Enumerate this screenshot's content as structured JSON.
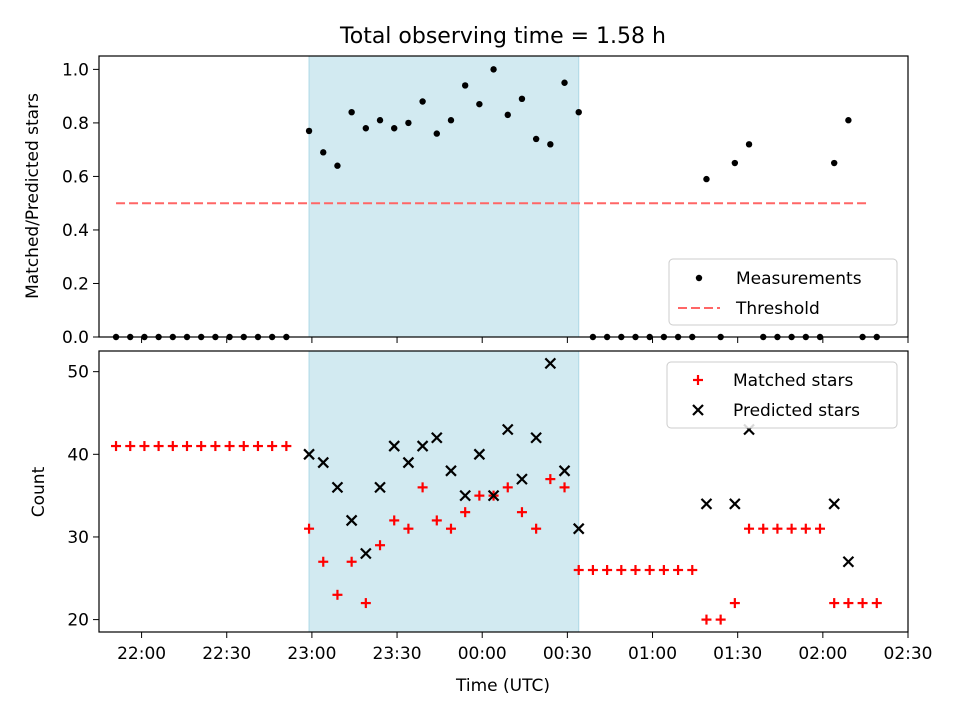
{
  "figure": {
    "title": "Total observing time = 1.58 h"
  },
  "colors": {
    "shade": "#add8e6",
    "threshold": "#ff6666",
    "matched": "#ff0000",
    "predicted": "#000000",
    "measure": "#000000"
  },
  "chart_data": [
    {
      "type": "scatter",
      "ylabel": "Matched/Predicted stars",
      "ylim": [
        0,
        1.05
      ],
      "yticks": [
        0.0,
        0.2,
        0.4,
        0.6,
        0.8,
        1.0
      ],
      "shaded_span": {
        "from": "22:59",
        "to": "00:34"
      },
      "threshold": {
        "name": "Threshold",
        "value": 0.5,
        "from": "21:51",
        "to": "02:16"
      },
      "legend": {
        "position": "lower-right",
        "entries": [
          "Measurements",
          "Threshold"
        ]
      },
      "series": [
        {
          "name": "Measurements",
          "marker": "dot",
          "points": [
            [
              "21:51",
              0
            ],
            [
              "21:56",
              0
            ],
            [
              "22:01",
              0
            ],
            [
              "22:06",
              0
            ],
            [
              "22:11",
              0
            ],
            [
              "22:16",
              0
            ],
            [
              "22:21",
              0
            ],
            [
              "22:26",
              0
            ],
            [
              "22:31",
              0
            ],
            [
              "22:36",
              0
            ],
            [
              "22:41",
              0
            ],
            [
              "22:46",
              0
            ],
            [
              "22:51",
              0
            ],
            [
              "22:59",
              0.77
            ],
            [
              "23:04",
              0.69
            ],
            [
              "23:09",
              0.64
            ],
            [
              "23:14",
              0.84
            ],
            [
              "23:19",
              0.78
            ],
            [
              "23:24",
              0.81
            ],
            [
              "23:29",
              0.78
            ],
            [
              "23:34",
              0.8
            ],
            [
              "23:39",
              0.88
            ],
            [
              "23:44",
              0.76
            ],
            [
              "23:49",
              0.81
            ],
            [
              "23:54",
              0.94
            ],
            [
              "23:59",
              0.87
            ],
            [
              "00:04",
              1.0
            ],
            [
              "00:09",
              0.83
            ],
            [
              "00:14",
              0.89
            ],
            [
              "00:19",
              0.74
            ],
            [
              "00:24",
              0.72
            ],
            [
              "00:29",
              0.95
            ],
            [
              "00:34",
              0.84
            ],
            [
              "00:39",
              0
            ],
            [
              "00:44",
              0
            ],
            [
              "00:49",
              0
            ],
            [
              "00:54",
              0
            ],
            [
              "00:59",
              0
            ],
            [
              "01:04",
              0
            ],
            [
              "01:09",
              0
            ],
            [
              "01:14",
              0
            ],
            [
              "01:19",
              0.59
            ],
            [
              "01:24",
              0
            ],
            [
              "01:29",
              0.65
            ],
            [
              "01:34",
              0.72
            ],
            [
              "01:39",
              0
            ],
            [
              "01:44",
              0
            ],
            [
              "01:49",
              0
            ],
            [
              "01:54",
              0
            ],
            [
              "01:59",
              0
            ],
            [
              "02:04",
              0.65
            ],
            [
              "02:09",
              0.81
            ],
            [
              "02:14",
              0
            ],
            [
              "02:19",
              0
            ]
          ]
        }
      ]
    },
    {
      "type": "scatter",
      "xlabel": "Time (UTC)",
      "ylabel": "Count",
      "ylim": [
        18.5,
        52.5
      ],
      "yticks": [
        20,
        30,
        40,
        50
      ],
      "xlim": [
        "21:45",
        "02:30"
      ],
      "xticks": [
        "22:00",
        "22:30",
        "23:00",
        "23:30",
        "00:00",
        "00:30",
        "01:00",
        "01:30",
        "02:00",
        "02:30"
      ],
      "shaded_span": {
        "from": "22:59",
        "to": "00:34"
      },
      "legend": {
        "position": "top-right",
        "entries": [
          "Matched stars",
          "Predicted stars"
        ]
      },
      "series": [
        {
          "name": "Matched stars",
          "marker": "plus",
          "points": [
            [
              "21:51",
              41
            ],
            [
              "21:56",
              41
            ],
            [
              "22:01",
              41
            ],
            [
              "22:06",
              41
            ],
            [
              "22:11",
              41
            ],
            [
              "22:16",
              41
            ],
            [
              "22:21",
              41
            ],
            [
              "22:26",
              41
            ],
            [
              "22:31",
              41
            ],
            [
              "22:36",
              41
            ],
            [
              "22:41",
              41
            ],
            [
              "22:46",
              41
            ],
            [
              "22:51",
              41
            ],
            [
              "22:59",
              31
            ],
            [
              "23:04",
              27
            ],
            [
              "23:09",
              23
            ],
            [
              "23:14",
              27
            ],
            [
              "23:19",
              22
            ],
            [
              "23:24",
              29
            ],
            [
              "23:29",
              32
            ],
            [
              "23:34",
              31
            ],
            [
              "23:39",
              36
            ],
            [
              "23:44",
              32
            ],
            [
              "23:49",
              31
            ],
            [
              "23:54",
              33
            ],
            [
              "23:59",
              35
            ],
            [
              "00:04",
              35
            ],
            [
              "00:09",
              36
            ],
            [
              "00:14",
              33
            ],
            [
              "00:19",
              31
            ],
            [
              "00:24",
              37
            ],
            [
              "00:29",
              36
            ],
            [
              "00:34",
              26
            ],
            [
              "00:39",
              26
            ],
            [
              "00:44",
              26
            ],
            [
              "00:49",
              26
            ],
            [
              "00:54",
              26
            ],
            [
              "00:59",
              26
            ],
            [
              "01:04",
              26
            ],
            [
              "01:09",
              26
            ],
            [
              "01:14",
              26
            ],
            [
              "01:19",
              20
            ],
            [
              "01:24",
              20
            ],
            [
              "01:29",
              22
            ],
            [
              "01:34",
              31
            ],
            [
              "01:39",
              31
            ],
            [
              "01:44",
              31
            ],
            [
              "01:49",
              31
            ],
            [
              "01:54",
              31
            ],
            [
              "01:59",
              31
            ],
            [
              "02:04",
              22
            ],
            [
              "02:09",
              22
            ],
            [
              "02:14",
              22
            ],
            [
              "02:19",
              22
            ]
          ]
        },
        {
          "name": "Predicted stars",
          "marker": "x",
          "points": [
            [
              "22:59",
              40
            ],
            [
              "23:04",
              39
            ],
            [
              "23:09",
              36
            ],
            [
              "23:14",
              32
            ],
            [
              "23:19",
              28
            ],
            [
              "23:24",
              36
            ],
            [
              "23:29",
              41
            ],
            [
              "23:34",
              39
            ],
            [
              "23:39",
              41
            ],
            [
              "23:44",
              42
            ],
            [
              "23:49",
              38
            ],
            [
              "23:54",
              35
            ],
            [
              "23:59",
              40
            ],
            [
              "00:04",
              35
            ],
            [
              "00:09",
              43
            ],
            [
              "00:14",
              37
            ],
            [
              "00:19",
              42
            ],
            [
              "00:24",
              51
            ],
            [
              "00:29",
              38
            ],
            [
              "00:34",
              31
            ],
            [
              "01:19",
              34
            ],
            [
              "01:29",
              34
            ],
            [
              "01:34",
              43
            ],
            [
              "02:04",
              34
            ],
            [
              "02:09",
              27
            ]
          ]
        }
      ]
    }
  ]
}
